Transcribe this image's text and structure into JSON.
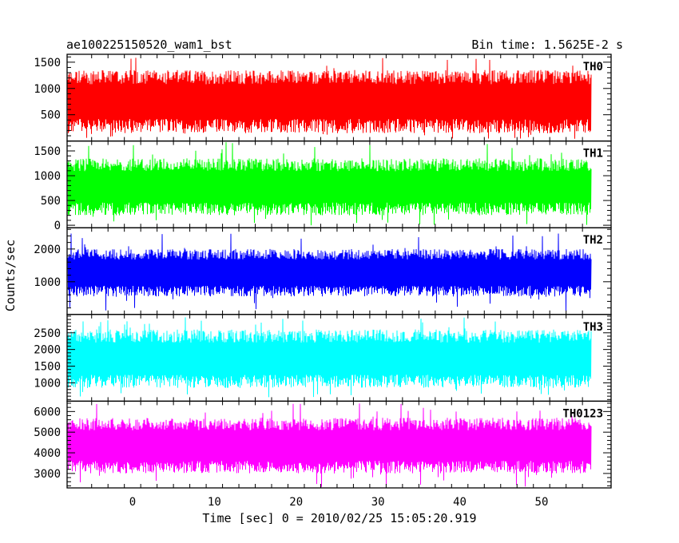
{
  "chart_data": {
    "type": "line",
    "title": "ae100225150520_wam1_bst",
    "subtitle": "Bin time: 1.5625E-2 s",
    "xlabel": "Time [sec] 0 = 2010/02/25 15:05:20.919",
    "ylabel": "Counts/sec",
    "xlim": [
      -8.0,
      58.5
    ],
    "x_data_range": [
      -7.9,
      56.1
    ],
    "bin_time": 0.015625,
    "x_ticks": [
      0,
      10,
      20,
      30,
      40,
      50
    ],
    "x_tick_labels": [
      "0",
      "10",
      "20",
      "30",
      "40",
      "50"
    ],
    "grid": false,
    "panels": [
      {
        "name": "TH0",
        "color": "#ff0000",
        "ylim": [
          0,
          1650
        ],
        "y_ticks": [
          500,
          1000,
          1500
        ],
        "y_tick_labels": [
          "500",
          "1000",
          "1500"
        ],
        "typical_min": 150,
        "typical_max": 1350,
        "peak_max": 1650,
        "dip_min": 40
      },
      {
        "name": "TH1",
        "color": "#00ff00",
        "ylim": [
          -50,
          1700
        ],
        "y_ticks": [
          0,
          500,
          1000,
          1500
        ],
        "y_tick_labels": [
          "0",
          "500",
          "1000",
          "1500"
        ],
        "typical_min": 200,
        "typical_max": 1350,
        "peak_max": 1680,
        "dip_min": 0
      },
      {
        "name": "TH2",
        "color": "#0000ff",
        "ylim": [
          0,
          2650
        ],
        "y_ticks": [
          1000,
          2000
        ],
        "y_tick_labels": [
          "1000",
          "2000"
        ],
        "typical_min": 550,
        "typical_max": 2000,
        "peak_max": 2500,
        "dip_min": 100
      },
      {
        "name": "TH3",
        "color": "#00ffff",
        "ylim": [
          450,
          3050
        ],
        "y_ticks": [
          1000,
          1500,
          2000,
          2500
        ],
        "y_tick_labels": [
          "1000",
          "1500",
          "2000",
          "2500"
        ],
        "typical_min": 850,
        "typical_max": 2600,
        "peak_max": 3000,
        "dip_min": 550
      },
      {
        "name": "TH0123",
        "color": "#ff00ff",
        "ylim": [
          2300,
          6500
        ],
        "y_ticks": [
          3000,
          4000,
          5000,
          6000
        ],
        "y_tick_labels": [
          "3000",
          "4000",
          "5000",
          "6000"
        ],
        "typical_min": 3000,
        "typical_max": 5700,
        "peak_max": 6400,
        "dip_min": 2350
      }
    ]
  }
}
